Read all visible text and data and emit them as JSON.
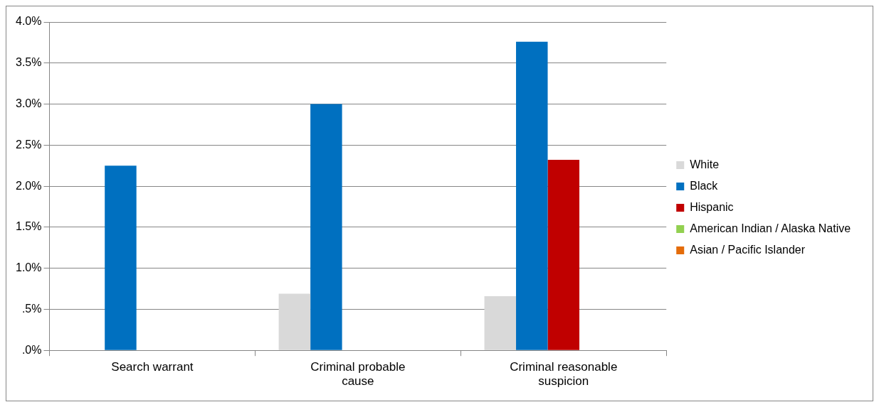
{
  "chart_data": {
    "type": "bar",
    "categories": [
      "Search warrant",
      "Criminal probable cause",
      "Criminal reasonable suspicion"
    ],
    "series": [
      {
        "name": "White",
        "color": "#d9d9d9",
        "values": [
          0,
          0.69,
          0.66
        ]
      },
      {
        "name": "Black",
        "color": "#0070c0",
        "values": [
          2.25,
          3.0,
          3.76
        ]
      },
      {
        "name": "Hispanic",
        "color": "#c00000",
        "values": [
          0,
          0,
          2.32
        ]
      },
      {
        "name": "American Indian / Alaska Native",
        "color": "#92d050",
        "values": [
          0,
          0,
          0
        ]
      },
      {
        "name": "Asian / Pacific Islander",
        "color": "#e46c0a",
        "values": [
          0,
          0,
          0
        ]
      }
    ],
    "ylim": [
      0,
      4
    ],
    "yticks": [
      {
        "value": 0,
        "label": ".0%"
      },
      {
        "value": 0.5,
        "label": ".5%"
      },
      {
        "value": 1,
        "label": "1.0%"
      },
      {
        "value": 1.5,
        "label": "1.5%"
      },
      {
        "value": 2,
        "label": "2.0%"
      },
      {
        "value": 2.5,
        "label": "2.5%"
      },
      {
        "value": 3,
        "label": "3.0%"
      },
      {
        "value": 3.5,
        "label": "3.5%"
      },
      {
        "value": 4,
        "label": "4.0%"
      }
    ],
    "grid": "y",
    "legend": "right"
  }
}
